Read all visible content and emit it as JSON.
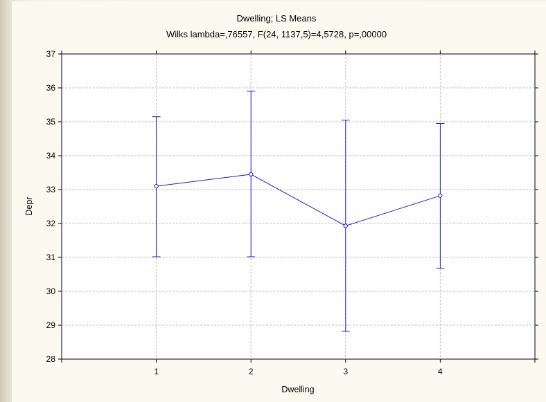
{
  "colors": {
    "series": "#1c1cd6",
    "grid": "#bdbdbd",
    "axis": "#000000",
    "panel_bg": "#fbf9f0",
    "plot_bg": "#ffffff"
  },
  "chart_data": {
    "type": "line",
    "title": "Dwelling; LS Means",
    "subtitle": "Wilks lambda=,76557, F(24, 1137,5)=4,5728, p=,00000",
    "xlabel": "Dwelling",
    "ylabel": "Depr",
    "categories": [
      "1",
      "2",
      "3",
      "4"
    ],
    "xlim": [
      0,
      5
    ],
    "ylim": [
      28,
      37
    ],
    "yticks": [
      "28",
      "29",
      "30",
      "31",
      "32",
      "33",
      "34",
      "35",
      "36",
      "37"
    ],
    "grid": true,
    "error_bars": true,
    "series": [
      {
        "means": [
          33.1,
          33.45,
          31.93,
          32.82
        ],
        "upper": [
          35.15,
          35.9,
          35.05,
          34.95
        ],
        "lower": [
          31.02,
          31.02,
          28.82,
          30.68
        ]
      }
    ]
  }
}
